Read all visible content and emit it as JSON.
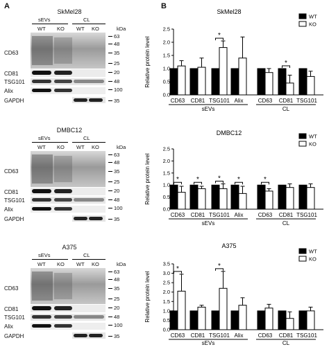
{
  "panel_labels": {
    "a": "A",
    "b": "B"
  },
  "kda_unit": "kDa",
  "marker_sizes": {
    "top": [
      "63",
      "48",
      "35",
      "25",
      "20",
      "48",
      "100",
      "35"
    ]
  },
  "blots": [
    {
      "cell_line": "SkMel28",
      "sevs": "sEVs",
      "cl": "CL",
      "wt": "WT",
      "ko": "KO",
      "rows": [
        "CD63",
        "CD81",
        "TSG101",
        "Alix",
        "GAPDH"
      ],
      "markers": [
        "63",
        "48",
        "35",
        "25",
        "20",
        "48",
        "100",
        "35"
      ]
    },
    {
      "cell_line": "DMBC12",
      "sevs": "sEVs",
      "cl": "CL",
      "wt": "WT",
      "ko": "KO",
      "rows": [
        "CD63",
        "CD81",
        "TSG101",
        "Alix",
        "GAPDH"
      ],
      "markers": [
        "63",
        "48",
        "35",
        "25",
        "20",
        "48",
        "100",
        "35"
      ]
    },
    {
      "cell_line": "A375",
      "sevs": "sEVs",
      "cl": "CL",
      "wt": "WT",
      "ko": "KO",
      "rows": [
        "CD63",
        "CD81",
        "TSG101",
        "Alix",
        "GAPDH"
      ],
      "markers": [
        "63",
        "48",
        "35",
        "25",
        "20",
        "48",
        "100",
        "35"
      ]
    }
  ],
  "chart_data": [
    {
      "type": "bar",
      "title": "SkMel28",
      "ylabel": "Relative protein level",
      "ylim": [
        0,
        2.5
      ],
      "yticks": [
        "0.0",
        "0.5",
        "1.0",
        "1.5",
        "2.0",
        "2.5"
      ],
      "categories": [
        "CD63",
        "CD81",
        "TSG101",
        "Alix",
        "CD63",
        "CD81",
        "TSG101"
      ],
      "groups": [
        {
          "label": "sEVs",
          "count": 4
        },
        {
          "label": "CL",
          "count": 3
        }
      ],
      "series": [
        {
          "name": "WT",
          "color": "#000000",
          "values": [
            1,
            1,
            1,
            1,
            1,
            1,
            1
          ],
          "errors": [
            0,
            0,
            0,
            0,
            0,
            0,
            0
          ]
        },
        {
          "name": "KO",
          "color": "#ffffff",
          "values": [
            1.1,
            1.05,
            1.8,
            1.4,
            0.85,
            0.45,
            0.7
          ],
          "errors": [
            0.2,
            0.35,
            0.25,
            0.8,
            0.15,
            0.3,
            0.2
          ]
        }
      ],
      "significance": [
        {
          "index": 2,
          "label": "*"
        },
        {
          "index": 5,
          "label": "*"
        }
      ],
      "legend": "top-right"
    },
    {
      "type": "bar",
      "title": "DMBC12",
      "ylabel": "Relative protein level",
      "ylim": [
        0,
        2.5
      ],
      "yticks": [
        "0.0",
        "0.5",
        "1.0",
        "1.5",
        "2.0",
        "2.5"
      ],
      "categories": [
        "CD63",
        "CD81",
        "TSG101",
        "Alix",
        "CD63",
        "CD81",
        "TSG101"
      ],
      "groups": [
        {
          "label": "sEVs",
          "count": 4
        },
        {
          "label": "CL",
          "count": 3
        }
      ],
      "series": [
        {
          "name": "WT",
          "color": "#000000",
          "values": [
            1,
            1,
            1,
            1,
            1,
            1,
            1
          ],
          "errors": [
            0,
            0,
            0,
            0,
            0,
            0,
            0
          ]
        },
        {
          "name": "KO",
          "color": "#ffffff",
          "values": [
            0.7,
            0.85,
            0.85,
            0.65,
            0.75,
            0.9,
            0.9
          ],
          "errors": [
            0.25,
            0.1,
            0.2,
            0.3,
            0.1,
            0.15,
            0.15
          ]
        }
      ],
      "significance": [
        {
          "index": 0,
          "label": "*"
        },
        {
          "index": 1,
          "label": "*"
        },
        {
          "index": 2,
          "label": "*"
        },
        {
          "index": 3,
          "label": "*"
        },
        {
          "index": 4,
          "label": "*"
        }
      ],
      "legend": "top-right"
    },
    {
      "type": "bar",
      "title": "A375",
      "ylabel": "Relative protein level",
      "ylim": [
        0,
        3.5
      ],
      "yticks": [
        "0.0",
        "0.5",
        "1.0",
        "1.5",
        "2.0",
        "2.5",
        "3.0",
        "3.5"
      ],
      "categories": [
        "CD63",
        "CD81",
        "TSG101",
        "Alix",
        "CD63",
        "CD81",
        "TSG101"
      ],
      "groups": [
        {
          "label": "sEVs",
          "count": 4
        },
        {
          "label": "CL",
          "count": 3
        }
      ],
      "series": [
        {
          "name": "WT",
          "color": "#000000",
          "values": [
            1,
            1,
            1,
            1,
            1,
            1,
            1
          ],
          "errors": [
            0,
            0,
            0,
            0,
            0,
            0,
            0
          ]
        },
        {
          "name": "KO",
          "color": "#ffffff",
          "values": [
            2.05,
            1.2,
            2.2,
            1.3,
            1.15,
            0.6,
            1.0
          ],
          "errors": [
            0.9,
            0.1,
            0.9,
            0.4,
            0.2,
            0.35,
            0.2
          ]
        }
      ],
      "significance": [
        {
          "index": 0,
          "label": "*"
        },
        {
          "index": 2,
          "label": "*"
        }
      ],
      "legend": "top-right"
    }
  ]
}
